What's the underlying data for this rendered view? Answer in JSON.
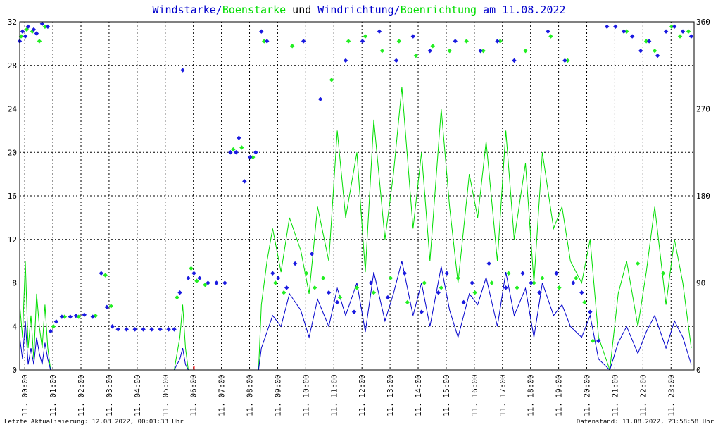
{
  "title": {
    "part1": "Windstarke",
    "sep1": "/",
    "part2": "Boenstarke",
    "part3": " und ",
    "part4": "Windrichtung",
    "sep2": "/",
    "part5": "Boenrichtung",
    "part6": " am 11.08.2022"
  },
  "footer": {
    "left": "Letzte Aktualisierung: 12.08.2022, 00:01:33 Uhr",
    "right": "Datenstand: 11.08.2022, 23:58:58 Uhr"
  },
  "colors": {
    "wind": "#0000cc",
    "gust": "#00dd00",
    "dir": "#1a1ae0",
    "gustdir": "#22ee22",
    "grid": "#000000",
    "marker": "#ff0000"
  },
  "chart_data": {
    "type": "line",
    "x_unit": "hours",
    "xlim": [
      0,
      24
    ],
    "ylim_left": [
      0,
      32
    ],
    "ylim_right": [
      0,
      360
    ],
    "yticks_left": [
      "0",
      "4",
      "8",
      "12",
      "16",
      "20",
      "24",
      "28",
      "32"
    ],
    "yticks_right": [
      "0",
      "90",
      "180",
      "270",
      "360"
    ],
    "xtick_labels": [
      "11. 00:00",
      "11. 01:00",
      "11. 02:00",
      "11. 03:00",
      "11. 04:00",
      "11. 05:00",
      "11. 06:00",
      "11. 07:00",
      "11. 08:00",
      "11. 09:00",
      "11. 10:00",
      "11. 11:00",
      "11. 12:00",
      "11. 13:00",
      "11. 14:00",
      "11. 15:00",
      "11. 16:00",
      "11. 17:00",
      "11. 18:00",
      "11. 19:00",
      "11. 20:00",
      "11. 21:00",
      "11. 22:00",
      "11. 23:00"
    ],
    "series": [
      {
        "name": "Windstarke",
        "kind": "line",
        "x": [
          0,
          0.1,
          0.2,
          0.3,
          0.4,
          0.5,
          0.6,
          0.7,
          0.8,
          0.9,
          1.0,
          1.1,
          1.2,
          2.5,
          3.0,
          3.2,
          5.5,
          5.7,
          5.8,
          5.9,
          6.0,
          8.5,
          8.6,
          8.8,
          9.0,
          9.3,
          9.6,
          10.0,
          10.3,
          10.6,
          11.0,
          11.3,
          11.6,
          12.0,
          12.3,
          12.6,
          13.0,
          13.3,
          13.6,
          14.0,
          14.3,
          14.6,
          15.0,
          15.3,
          15.6,
          16.0,
          16.3,
          16.6,
          17.0,
          17.3,
          17.6,
          18.0,
          18.3,
          18.6,
          19.0,
          19.3,
          19.6,
          20.0,
          20.3,
          20.6,
          21.0,
          21.3,
          21.6,
          22.0,
          22.3,
          22.6,
          23.0,
          23.3,
          23.6,
          23.9
        ],
        "values": [
          3.0,
          1.0,
          4.5,
          0.5,
          2.0,
          0.5,
          3.0,
          1.5,
          0.5,
          2.5,
          1.0,
          0.0,
          0.0,
          0.0,
          0.0,
          0.0,
          0.0,
          1.0,
          2.0,
          0.5,
          0.0,
          0.0,
          2.0,
          3.5,
          5.0,
          4.0,
          7.0,
          5.5,
          3.0,
          6.5,
          4.0,
          7.5,
          5.0,
          8.0,
          3.5,
          9.0,
          4.5,
          7.0,
          10.0,
          5.0,
          8.0,
          4.0,
          9.5,
          5.5,
          3.0,
          7.0,
          6.0,
          8.5,
          4.0,
          9.0,
          5.0,
          7.5,
          3.0,
          8.0,
          5.0,
          6.0,
          4.0,
          3.0,
          5.0,
          1.0,
          0.0,
          2.5,
          4.0,
          1.5,
          3.5,
          5.0,
          2.0,
          4.5,
          3.0,
          0.5
        ]
      },
      {
        "name": "Boenstarke",
        "kind": "line",
        "x": [
          0,
          0.1,
          0.2,
          0.3,
          0.4,
          0.5,
          0.6,
          0.7,
          0.8,
          0.9,
          1.0,
          1.1,
          1.2,
          2.5,
          3.0,
          3.2,
          5.5,
          5.7,
          5.8,
          5.9,
          6.0,
          8.5,
          8.6,
          8.8,
          9.0,
          9.3,
          9.6,
          10.0,
          10.3,
          10.6,
          11.0,
          11.3,
          11.6,
          12.0,
          12.3,
          12.6,
          13.0,
          13.3,
          13.6,
          14.0,
          14.3,
          14.6,
          15.0,
          15.3,
          15.6,
          16.0,
          16.3,
          16.6,
          17.0,
          17.3,
          17.6,
          18.0,
          18.3,
          18.6,
          19.0,
          19.3,
          19.6,
          20.0,
          20.3,
          20.6,
          21.0,
          21.3,
          21.6,
          22.0,
          22.3,
          22.6,
          23.0,
          23.3,
          23.6,
          23.9
        ],
        "values": [
          6.0,
          3.0,
          10.0,
          2.0,
          5.0,
          1.0,
          7.0,
          4.0,
          2.0,
          6.0,
          2.0,
          0.0,
          0.0,
          0.0,
          0.0,
          0.0,
          0.0,
          3.0,
          6.0,
          2.0,
          0.0,
          0.0,
          6.0,
          10.0,
          13.0,
          9.0,
          14.0,
          11.0,
          7.0,
          15.0,
          10.0,
          22.0,
          14.0,
          20.0,
          9.0,
          23.0,
          12.0,
          18.0,
          26.0,
          13.0,
          20.0,
          10.0,
          24.0,
          15.0,
          8.0,
          18.0,
          14.0,
          21.0,
          10.0,
          22.0,
          12.0,
          19.0,
          8.0,
          20.0,
          13.0,
          15.0,
          10.0,
          8.0,
          12.0,
          3.0,
          0.0,
          7.0,
          10.0,
          4.0,
          9.0,
          15.0,
          6.0,
          12.0,
          8.0,
          2.0
        ]
      },
      {
        "name": "Windrichtung",
        "kind": "scatter",
        "x": [
          0.0,
          0.1,
          0.2,
          0.3,
          0.5,
          0.6,
          0.8,
          1.0,
          1.1,
          1.3,
          1.5,
          1.8,
          2.0,
          2.3,
          2.6,
          2.9,
          3.1,
          3.3,
          3.5,
          3.8,
          4.1,
          4.4,
          4.7,
          5.0,
          5.3,
          5.5,
          5.7,
          5.8,
          6.0,
          6.2,
          6.4,
          6.7,
          7.0,
          7.3,
          7.5,
          7.7,
          7.8,
          8.0,
          8.2,
          8.4,
          8.6,
          8.8,
          9.0,
          9.2,
          9.5,
          9.8,
          10.1,
          10.4,
          10.7,
          11.0,
          11.3,
          11.6,
          11.9,
          12.2,
          12.5,
          12.8,
          13.1,
          13.4,
          13.7,
          14.0,
          14.3,
          14.6,
          14.9,
          15.2,
          15.5,
          15.8,
          16.1,
          16.4,
          16.7,
          17.0,
          17.3,
          17.6,
          17.9,
          18.2,
          18.5,
          18.8,
          19.1,
          19.4,
          19.7,
          20.0,
          20.3,
          20.6,
          20.9,
          21.2,
          21.5,
          21.8,
          22.1,
          22.4,
          22.7,
          23.0,
          23.3,
          23.6,
          23.9
        ],
        "values": [
          340,
          350,
          345,
          355,
          352,
          348,
          358,
          355,
          40,
          50,
          55,
          55,
          56,
          57,
          55,
          100,
          65,
          45,
          42,
          42,
          42,
          42,
          42,
          42,
          42,
          42,
          80,
          310,
          95,
          100,
          95,
          90,
          90,
          90,
          225,
          225,
          240,
          195,
          220,
          225,
          350,
          340,
          100,
          95,
          85,
          110,
          340,
          120,
          280,
          80,
          70,
          320,
          60,
          340,
          90,
          350,
          75,
          320,
          100,
          345,
          60,
          330,
          80,
          100,
          340,
          70,
          90,
          330,
          110,
          340,
          85,
          320,
          100,
          90,
          80,
          350,
          100,
          320,
          90,
          80,
          60,
          30,
          355,
          355,
          350,
          345,
          330,
          340,
          325,
          350,
          355,
          350,
          345
        ]
      },
      {
        "name": "Boenrichtung",
        "kind": "scatter",
        "x": [
          0.05,
          0.25,
          0.45,
          0.7,
          0.9,
          1.2,
          1.6,
          2.1,
          2.7,
          3.05,
          3.25,
          5.6,
          6.1,
          6.3,
          6.6,
          7.6,
          7.9,
          8.3,
          8.7,
          9.1,
          9.4,
          9.7,
          10.2,
          10.5,
          10.8,
          11.1,
          11.4,
          11.7,
          12.0,
          12.3,
          12.6,
          12.9,
          13.2,
          13.5,
          13.8,
          14.1,
          14.4,
          14.7,
          15.0,
          15.3,
          15.6,
          15.9,
          16.2,
          16.5,
          16.8,
          17.1,
          17.4,
          17.7,
          18.0,
          18.3,
          18.6,
          18.9,
          19.2,
          19.5,
          19.8,
          20.1,
          20.4,
          21.6,
          22.0,
          22.3,
          22.6,
          22.9,
          23.2,
          23.5,
          23.8
        ],
        "values": [
          345,
          352,
          350,
          340,
          355,
          45,
          55,
          55,
          56,
          98,
          66,
          75,
          105,
          92,
          88,
          228,
          230,
          220,
          340,
          90,
          80,
          335,
          100,
          85,
          95,
          300,
          75,
          340,
          85,
          345,
          80,
          330,
          95,
          340,
          70,
          325,
          90,
          335,
          85,
          330,
          95,
          340,
          80,
          330,
          90,
          340,
          100,
          85,
          330,
          90,
          95,
          345,
          85,
          320,
          95,
          70,
          30,
          350,
          110,
          340,
          330,
          100,
          355,
          345,
          350
        ]
      }
    ]
  }
}
